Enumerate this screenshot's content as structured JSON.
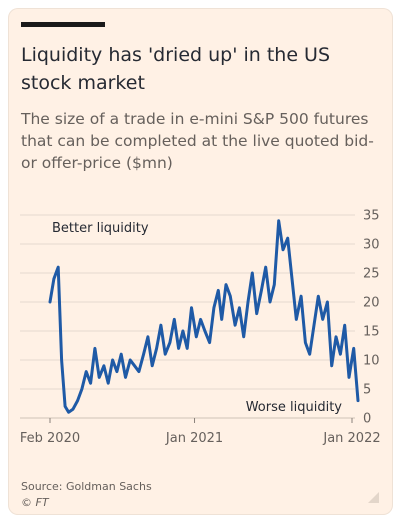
{
  "header": {
    "title": "Liquidity has 'dried up' in the US stock market",
    "subtitle": "The size of a trade in e-mini S&P 500 futures that can be completed at the live quoted bid- or offer-price ($mn)"
  },
  "footer": {
    "source": "Source: Goldman Sachs",
    "credit": "© FT"
  },
  "colors": {
    "line": "#1f5aa6",
    "grid": "#e6d9ce",
    "text": "#66605c",
    "background": "#fff1e5"
  },
  "chart_data": {
    "type": "line",
    "title": "Liquidity has 'dried up' in the US stock market",
    "subtitle": "The size of a trade in e-mini S&P 500 futures that can be completed at the live quoted bid- or offer-price ($mn)",
    "xlabel": "",
    "ylabel": "",
    "ylim": [
      0,
      35
    ],
    "yticks": [
      0,
      5,
      10,
      15,
      20,
      25,
      30,
      35
    ],
    "y_axis_side": "right",
    "xlim": [
      "2020-02",
      "2022-01"
    ],
    "xticks": [
      {
        "label": "Feb 2020",
        "x": "2020-02"
      },
      {
        "label": "Jan 2021",
        "x": "2021-01"
      },
      {
        "label": "Jan 2022",
        "x": "2022-01"
      }
    ],
    "grid": true,
    "annotations": [
      {
        "text": "Better liquidity",
        "position": "top-left"
      },
      {
        "text": "Worse liquidity",
        "position": "bottom-right"
      }
    ],
    "series": [
      {
        "x": [
          "2020-02-01",
          "2020-02-10",
          "2020-02-20",
          "2020-02-28",
          "2020-03-07",
          "2020-03-15",
          "2020-03-25",
          "2020-04-05",
          "2020-04-15",
          "2020-04-25",
          "2020-05-05",
          "2020-05-15",
          "2020-05-25",
          "2020-06-05",
          "2020-06-15",
          "2020-06-25",
          "2020-07-05",
          "2020-07-15",
          "2020-07-25",
          "2020-08-05",
          "2020-08-15",
          "2020-08-25",
          "2020-09-05",
          "2020-09-15",
          "2020-09-25",
          "2020-10-05",
          "2020-10-15",
          "2020-10-25",
          "2020-11-05",
          "2020-11-15",
          "2020-11-25",
          "2020-12-05",
          "2020-12-15",
          "2020-12-25",
          "2021-01-05",
          "2021-01-15",
          "2021-01-25",
          "2021-02-05",
          "2021-02-15",
          "2021-02-25",
          "2021-03-05",
          "2021-03-15",
          "2021-03-25",
          "2021-04-05",
          "2021-04-15",
          "2021-04-25",
          "2021-05-05",
          "2021-05-15",
          "2021-05-25",
          "2021-06-05",
          "2021-06-15",
          "2021-06-25",
          "2021-07-05",
          "2021-07-15",
          "2021-07-25",
          "2021-08-05",
          "2021-08-15",
          "2021-08-25",
          "2021-09-05",
          "2021-09-15",
          "2021-09-25",
          "2021-10-05",
          "2021-10-15",
          "2021-10-25",
          "2021-11-05",
          "2021-11-15",
          "2021-11-25",
          "2021-12-05",
          "2021-12-15",
          "2021-12-25",
          "2022-01-05",
          "2022-01-15"
        ],
        "values": [
          20,
          24,
          26,
          10,
          2,
          1,
          1.5,
          3,
          5,
          8,
          6,
          12,
          7,
          9,
          6,
          10,
          8,
          11,
          7,
          10,
          9,
          8,
          11,
          14,
          9,
          12,
          16,
          11,
          13,
          17,
          12,
          15,
          12,
          19,
          14,
          17,
          15,
          13,
          19,
          22,
          17,
          23,
          21,
          16,
          19,
          14,
          20,
          25,
          18,
          22,
          26,
          20,
          23,
          34,
          29,
          31,
          24,
          17,
          21,
          13,
          11,
          16,
          21,
          17,
          20,
          9,
          14,
          11,
          16,
          7,
          12,
          3
        ]
      }
    ]
  }
}
